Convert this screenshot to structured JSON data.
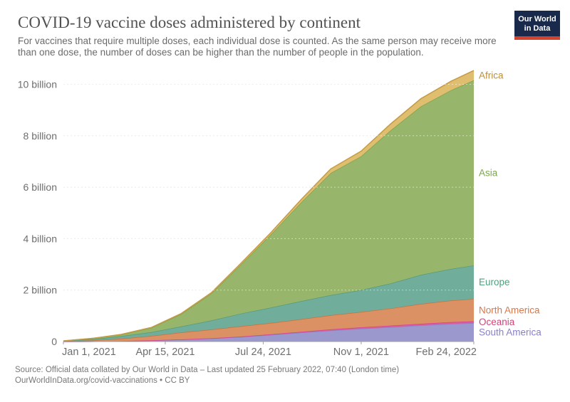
{
  "header": {
    "title": "COVID-19 vaccine doses administered by continent",
    "subtitle_line1": "For vaccines that require multiple doses, each individual dose is counted. As the same person may receive more",
    "subtitle_line2": "than one dose, the number of doses can be higher than the number of people in the population."
  },
  "logo": {
    "line1": "Our World",
    "line2": "in Data",
    "bg_color": "#18294B",
    "accent_color": "#D1422F"
  },
  "footer": {
    "source_line": "Source: Official data collated by Our World in Data – Last updated 25 February 2022, 07:40 (London time)",
    "link_line": "OurWorldInData.org/covid-vaccinations • CC BY"
  },
  "chart_data": {
    "type": "area",
    "stacked": true,
    "title": "COVID-19 vaccine doses administered by continent",
    "unit": "vaccine doses",
    "grid": true,
    "legend_position": "right-of-plot",
    "stack_order": "bottom-to-top",
    "x_dates": [
      "2021-01-01",
      "2021-02-01",
      "2021-03-01",
      "2021-04-01",
      "2021-05-01",
      "2021-06-01",
      "2021-07-01",
      "2021-08-01",
      "2021-09-01",
      "2021-10-01",
      "2021-11-01",
      "2021-12-01",
      "2022-01-01",
      "2022-02-01",
      "2022-02-24"
    ],
    "x_days": [
      0,
      31,
      59,
      90,
      120,
      151,
      181,
      212,
      243,
      273,
      304,
      334,
      365,
      396,
      419
    ],
    "x_axis": {
      "tick_labels": [
        "Jan 1, 2021",
        "Apr 15, 2021",
        "Jul 24, 2021",
        "Nov 1, 2021",
        "Feb 24, 2022"
      ],
      "tick_days": [
        0,
        104,
        204,
        304,
        419
      ]
    },
    "y_axis": {
      "tick_labels": [
        "0",
        "2 billion",
        "4 billion",
        "6 billion",
        "8 billion",
        "10 billion"
      ],
      "tick_values": [
        0,
        2,
        4,
        6,
        8,
        10
      ],
      "unit": "billion doses",
      "range": [
        0,
        10.7
      ]
    },
    "axis_text_color": "#6e6e6e",
    "axis_line_color": "#9e9e9e",
    "gridline_color": "#dcdcdc",
    "series": [
      {
        "id": "south-america",
        "label": "South America",
        "fill_color": "#9B98CE",
        "stroke_color": "#8883C4",
        "label_color": "#8981C7",
        "values_billions": [
          0,
          0.005,
          0.02,
          0.045,
          0.08,
          0.12,
          0.18,
          0.26,
          0.35,
          0.43,
          0.5,
          0.56,
          0.63,
          0.69,
          0.72
        ]
      },
      {
        "id": "oceania",
        "label": "Oceania",
        "fill_color": "#DE5C9E",
        "stroke_color": "#D64391",
        "label_color": "#CF4479",
        "values_billions": [
          0,
          0.0002,
          0.001,
          0.002,
          0.004,
          0.008,
          0.014,
          0.022,
          0.032,
          0.044,
          0.053,
          0.058,
          0.062,
          0.066,
          0.068
        ]
      },
      {
        "id": "north-america",
        "label": "North America",
        "fill_color": "#DB9164",
        "stroke_color": "#C9713D",
        "label_color": "#D8794A",
        "values_billions": [
          0.006,
          0.042,
          0.09,
          0.17,
          0.27,
          0.34,
          0.4,
          0.44,
          0.49,
          0.55,
          0.6,
          0.67,
          0.77,
          0.84,
          0.87
        ]
      },
      {
        "id": "europe",
        "label": "Europe",
        "fill_color": "#70AE9B",
        "stroke_color": "#55997E",
        "label_color": "#4FA17D",
        "values_billions": [
          0.01,
          0.05,
          0.1,
          0.15,
          0.23,
          0.35,
          0.49,
          0.6,
          0.7,
          0.78,
          0.85,
          0.97,
          1.13,
          1.23,
          1.3
        ]
      },
      {
        "id": "asia",
        "label": "Asia",
        "fill_color": "#97B66B",
        "stroke_color": "#7FA24E",
        "label_color": "#7BA64C",
        "values_billions": [
          0.008,
          0.03,
          0.06,
          0.17,
          0.48,
          1.05,
          1.9,
          2.85,
          3.85,
          4.75,
          5.2,
          5.95,
          6.55,
          6.95,
          7.2
        ]
      },
      {
        "id": "africa",
        "label": "Africa",
        "fill_color": "#E0BE6F",
        "stroke_color": "#C49B45",
        "label_color": "#BD9038",
        "values_billions": [
          0,
          0.002,
          0.007,
          0.015,
          0.02,
          0.03,
          0.05,
          0.07,
          0.11,
          0.16,
          0.2,
          0.25,
          0.3,
          0.35,
          0.38
        ]
      }
    ]
  }
}
